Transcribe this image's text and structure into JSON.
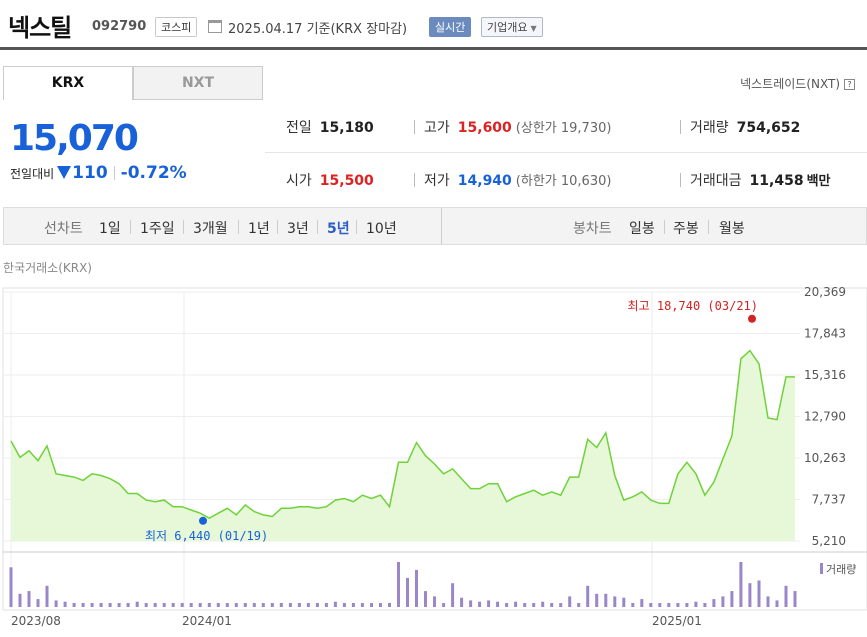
{
  "header": {
    "name": "넥스틸",
    "code": "092790",
    "market": "코스피",
    "date": "2025.04.17 기준(KRX 장마감)",
    "realtime": "실시간",
    "company": "기업개요"
  },
  "tabs": {
    "krx": "KRX",
    "nxt": "NXT"
  },
  "nxt_link": "넥스트레이드(NXT)",
  "help": "?",
  "price": {
    "current": "15,070",
    "change_label": "전일대비",
    "change_value": "110",
    "change_pct": "-0.72%"
  },
  "info": {
    "prev_label": "전일",
    "prev": "15,180",
    "high_label": "고가",
    "high": "15,600",
    "upper": "(상한가 19,730)",
    "volume_label": "거래량",
    "volume": "754,652",
    "open_label": "시가",
    "open": "15,500",
    "low_label": "저가",
    "low": "14,940",
    "lower": "(하한가 10,630)",
    "amount_label": "거래대금",
    "amount": "11,458",
    "amount_unit": "백만"
  },
  "periods": {
    "line_title": "선차트",
    "line": [
      "1일",
      "1주일",
      "3개월",
      "1년",
      "3년",
      "5년",
      "10년"
    ],
    "line_active": "5년",
    "candle_title": "봉차트",
    "candle": [
      "일봉",
      "주봉",
      "월봉"
    ]
  },
  "exchange_label": "한국거래소(KRX)",
  "colors": {
    "line": "#6fd23a",
    "area": "#e6f8d7",
    "volume": "#9a86c9",
    "down": "#1861d8",
    "up": "#d22222"
  },
  "chart_data": {
    "type": "area",
    "x_labels": [
      "2023/08",
      "2024/01",
      "2025/01"
    ],
    "y_ticks": [
      "20,369",
      "17,843",
      "15,316",
      "12,790",
      "10,263",
      "7,737",
      "5,210"
    ],
    "y_tick_values": [
      20369,
      17843,
      15316,
      12790,
      10263,
      7737,
      5210
    ],
    "ylim": [
      5210,
      20369
    ],
    "max_annotation": "최고 18,740 (03/21)",
    "min_annotation": "최저 6,440 (01/19)",
    "max_value": 18740,
    "min_value": 6440,
    "volume_legend": "거래량",
    "series": [
      {
        "values": [
          11300,
          10300,
          10700,
          10100,
          11000,
          9300,
          9200,
          9100,
          8900,
          9300,
          9200,
          9000,
          8700,
          8100,
          8100,
          7700,
          7600,
          7700,
          7300,
          7300,
          7100,
          6900,
          6600,
          6900,
          7200,
          6800,
          7400,
          7000,
          6800,
          6700,
          7200,
          7200,
          7300,
          7300,
          7200,
          7300,
          7700,
          7800,
          7600,
          8000,
          7800,
          8000,
          7300,
          10000,
          10000,
          11200,
          10400,
          9900,
          9300,
          9600,
          9000,
          8400,
          8400,
          8700,
          8700,
          7600,
          7900,
          8100,
          8300,
          8000,
          8200,
          8000,
          9100,
          9100,
          11400,
          10900,
          11800,
          9200,
          7700,
          7900,
          8200,
          7700,
          7500,
          7500,
          9300,
          10000,
          9300,
          8000,
          8800,
          10200,
          11600,
          16300,
          16800,
          16000,
          12700,
          12600,
          15200,
          15200
        ]
      }
    ],
    "volume_values": [
      30,
      10,
      12,
      6,
      16,
      5,
      4,
      3,
      3,
      3,
      3,
      3,
      3,
      3,
      4,
      3,
      3,
      3,
      3,
      3,
      3,
      3,
      3,
      3,
      3,
      3,
      3,
      3,
      3,
      3,
      3,
      3,
      3,
      3,
      3,
      3,
      4,
      3,
      3,
      3,
      3,
      3,
      3,
      34,
      22,
      28,
      12,
      8,
      3,
      18,
      7,
      5,
      4,
      5,
      4,
      3,
      4,
      3,
      3,
      4,
      3,
      3,
      8,
      3,
      16,
      10,
      10,
      8,
      7,
      3,
      6,
      3,
      3,
      3,
      3,
      3,
      4,
      3,
      6,
      8,
      12,
      34,
      18,
      20,
      8,
      5,
      16,
      12
    ]
  }
}
